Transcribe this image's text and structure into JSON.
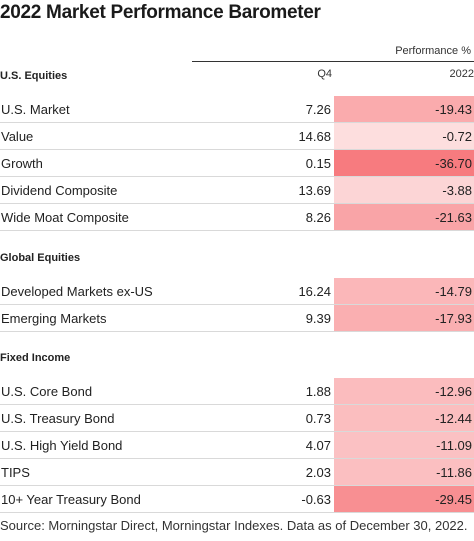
{
  "chart_data": {
    "type": "table",
    "title": "2022 Market Performance Barometer",
    "header_group": "Performance %",
    "columns": [
      "Q4",
      "2022"
    ],
    "sections": [
      {
        "label": "U.S. Equities",
        "rows": [
          {
            "name": "U.S. Market",
            "q4": "7.26",
            "y2022": "-19.43",
            "v": -19.43
          },
          {
            "name": "Value",
            "q4": "14.68",
            "y2022": "-0.72",
            "v": -0.72
          },
          {
            "name": "Growth",
            "q4": "0.15",
            "y2022": "-36.70",
            "v": -36.7
          },
          {
            "name": "Dividend Composite",
            "q4": "13.69",
            "y2022": "-3.88",
            "v": -3.88
          },
          {
            "name": "Wide Moat Composite",
            "q4": "8.26",
            "y2022": "-21.63",
            "v": -21.63
          }
        ]
      },
      {
        "label": "Global Equities",
        "rows": [
          {
            "name": "Developed Markets ex-US",
            "q4": "16.24",
            "y2022": "-14.79",
            "v": -14.79
          },
          {
            "name": "Emerging Markets",
            "q4": "9.39",
            "y2022": "-17.93",
            "v": -17.93
          }
        ]
      },
      {
        "label": "Fixed Income",
        "rows": [
          {
            "name": "U.S. Core Bond",
            "q4": "1.88",
            "y2022": "-12.96",
            "v": -12.96
          },
          {
            "name": "U.S. Treasury Bond",
            "q4": "0.73",
            "y2022": "-12.44",
            "v": -12.44
          },
          {
            "name": "U.S. High Yield Bond",
            "q4": "4.07",
            "y2022": "-11.09",
            "v": -11.09
          },
          {
            "name": "TIPS",
            "q4": "2.03",
            "y2022": "-11.86",
            "v": -11.86
          },
          {
            "name": "10+ Year Treasury Bond",
            "q4": "-0.63",
            "y2022": "-29.45",
            "v": -29.45
          }
        ]
      }
    ],
    "heat_colors": {
      "light": "#fde0e0",
      "dark": "#f77b7f"
    }
  },
  "source": "Source: Morningstar Direct, Morningstar Indexes. Data as of December 30, 2022."
}
